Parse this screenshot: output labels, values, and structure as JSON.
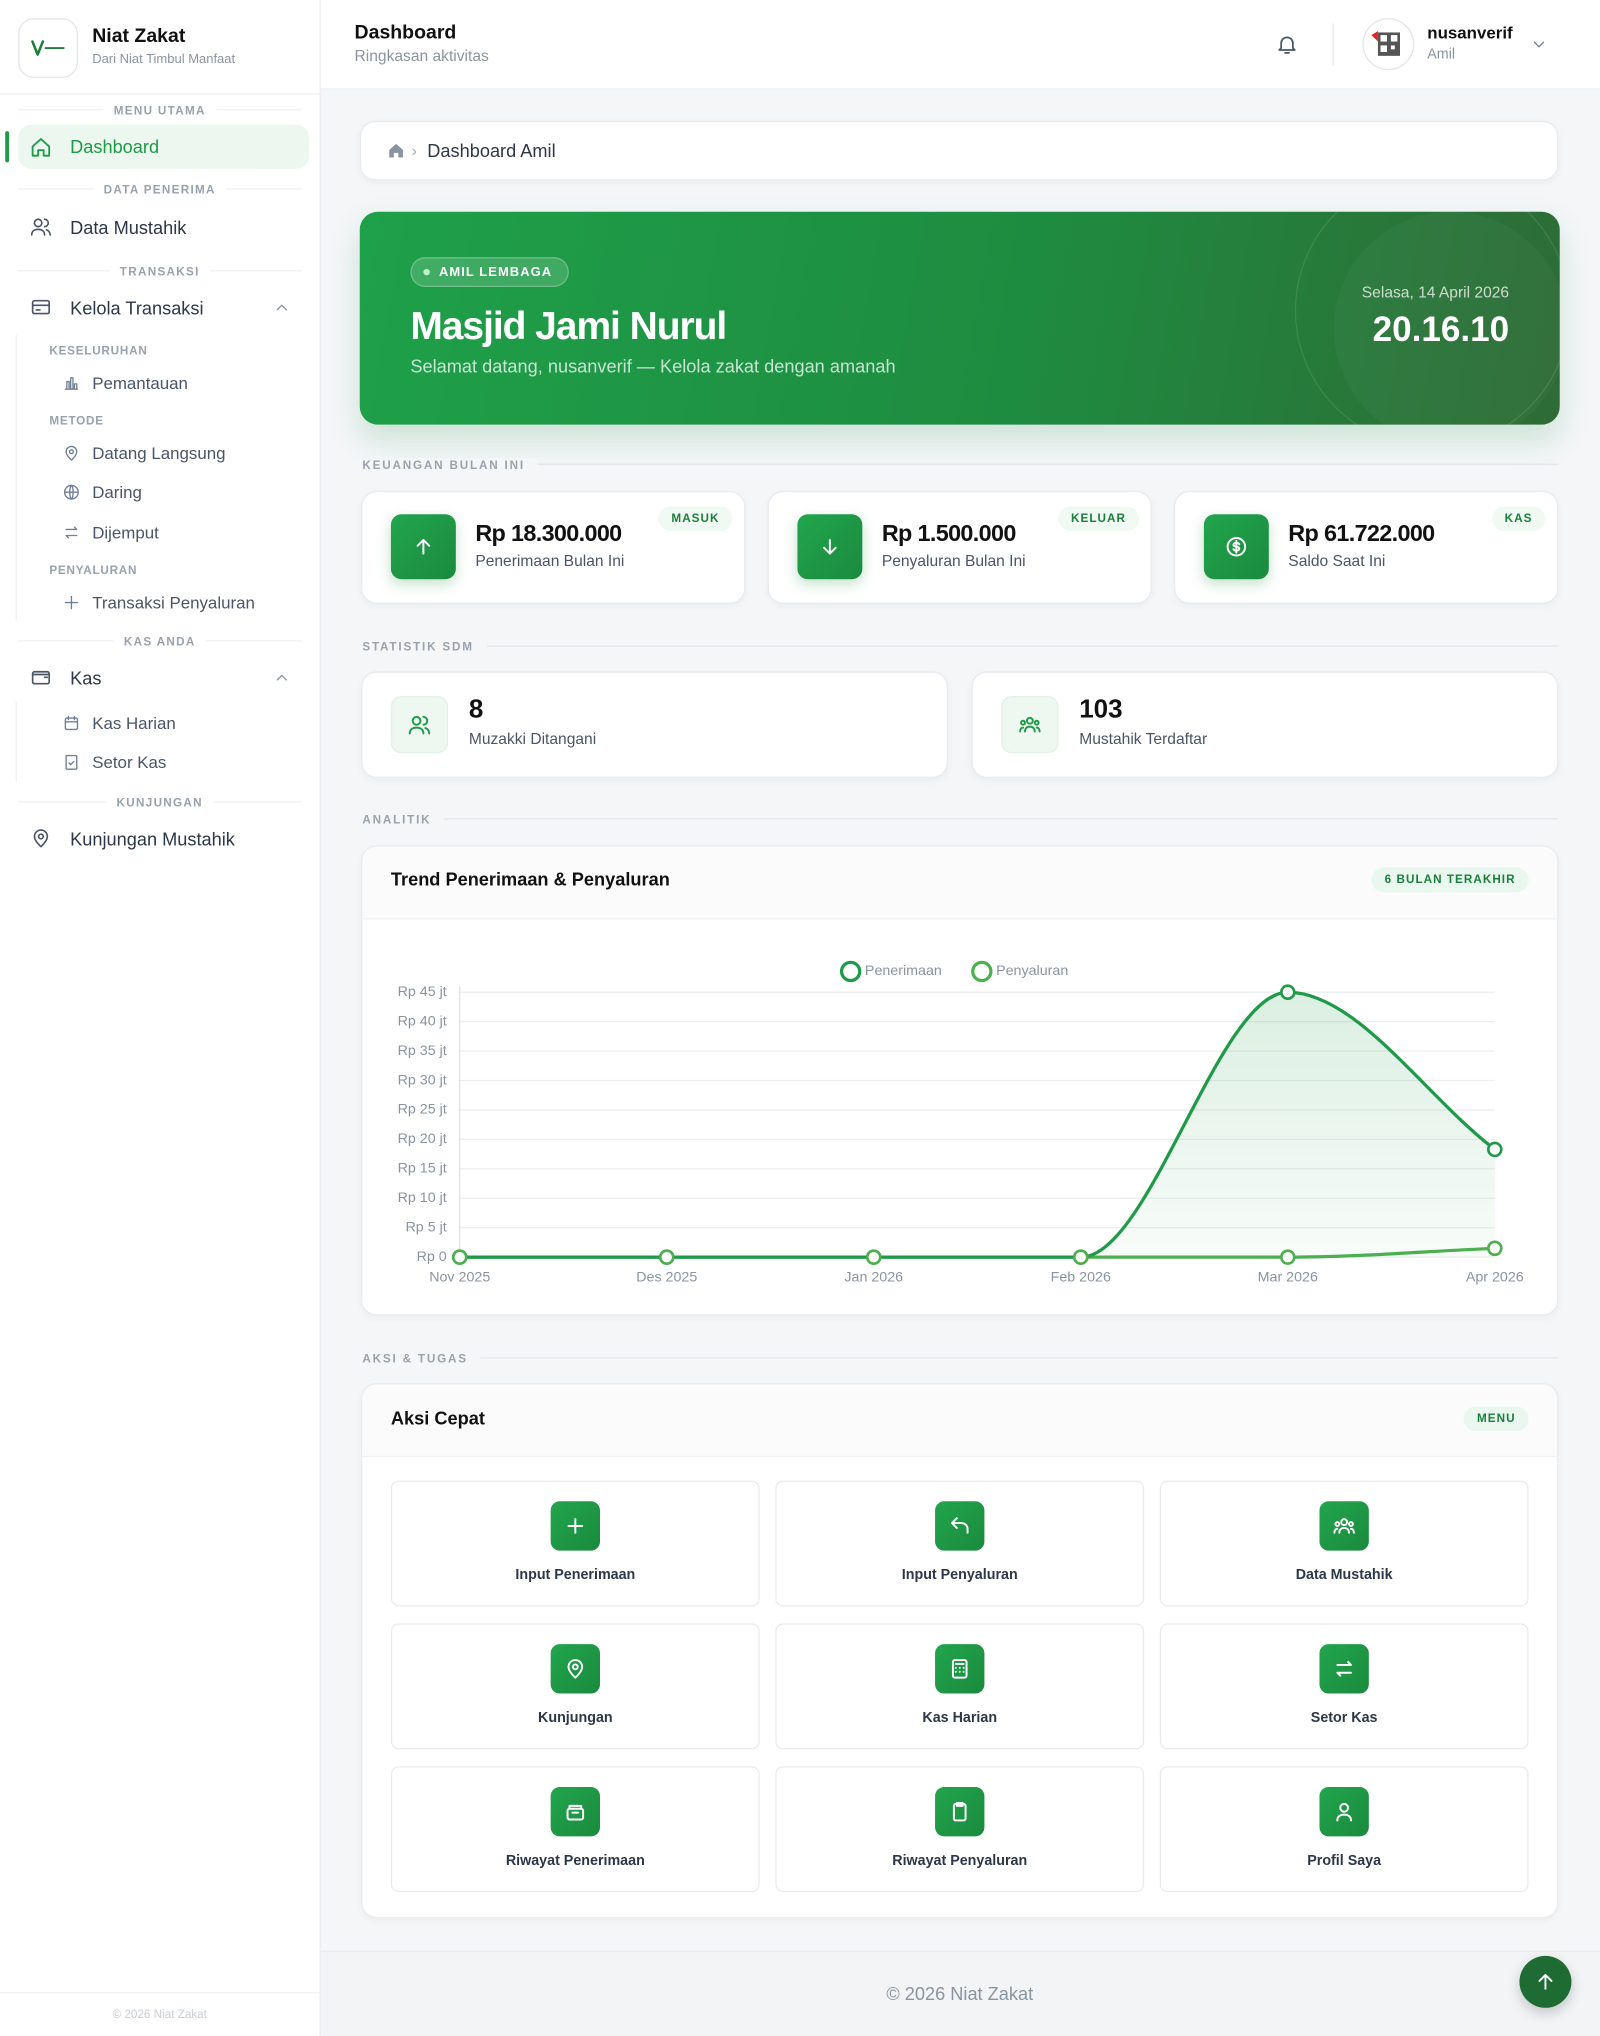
{
  "sidebar": {
    "brand": "Niat Zakat",
    "tagline": "Dari Niat Timbul Manfaat",
    "sections": [
      {
        "title": "MENU UTAMA",
        "items": [
          {
            "label": "Dashboard"
          }
        ]
      },
      {
        "title": "DATA PENERIMA",
        "items": [
          {
            "label": "Data Mustahik"
          }
        ]
      },
      {
        "title": "TRANSAKSI",
        "items": [
          {
            "label": "Kelola Transaksi",
            "groups": [
              {
                "title": "KESELURUHAN",
                "items": [
                  "Pemantauan"
                ]
              },
              {
                "title": "METODE",
                "items": [
                  "Datang Langsung",
                  "Daring",
                  "Dijemput"
                ]
              },
              {
                "title": "PENYALURAN",
                "items": [
                  "Transaksi Penyaluran"
                ]
              }
            ]
          }
        ]
      },
      {
        "title": "KAS ANDA",
        "items": [
          {
            "label": "Kas",
            "groups": [
              {
                "items": [
                  "Kas Harian",
                  "Setor Kas"
                ]
              }
            ]
          }
        ]
      },
      {
        "title": "KUNJUNGAN",
        "items": [
          {
            "label": "Kunjungan Mustahik"
          }
        ]
      }
    ],
    "footer": "© 2026 Niat Zakat"
  },
  "header": {
    "title": "Dashboard",
    "subtitle": "Ringkasan aktivitas",
    "user": "nusanverif",
    "role": "Amil"
  },
  "breadcrumb": "Dashboard Amil",
  "hero": {
    "badge": "AMIL LEMBAGA",
    "title": "Masjid Jami Nurul",
    "subtitle": "Selamat datang, nusanverif — Kelola zakat dengan amanah",
    "date": "Selasa, 14 April 2026",
    "time": "20.16.10"
  },
  "finance": {
    "title": "KEUANGAN BULAN INI",
    "cards": [
      {
        "amount": "Rp 18.300.000",
        "label": "Penerimaan Bulan Ini",
        "badge": "MASUK"
      },
      {
        "amount": "Rp 1.500.000",
        "label": "Penyaluran Bulan Ini",
        "badge": "KELUAR"
      },
      {
        "amount": "Rp 61.722.000",
        "label": "Saldo Saat Ini",
        "badge": "KAS"
      }
    ]
  },
  "stats": {
    "title": "STATISTIK SDM",
    "cards": [
      {
        "value": "8",
        "label": "Muzakki Ditangani"
      },
      {
        "value": "103",
        "label": "Mustahik Terdaftar"
      }
    ]
  },
  "analytics": {
    "title": "ANALITIK"
  },
  "chart_data": {
    "type": "line",
    "title": "Trend Penerimaan & Penyaluran",
    "subtitle": "6 BULAN TERAKHIR",
    "categories": [
      "Nov 2025",
      "Des 2025",
      "Jan 2026",
      "Feb 2026",
      "Mar 2026",
      "Apr 2026"
    ],
    "series": [
      {
        "name": "Penerimaan",
        "color": "#1e9a48",
        "values": [
          0,
          0,
          0,
          0,
          45,
          18.3
        ]
      },
      {
        "name": "Penyaluran",
        "color": "#4caf50",
        "values": [
          0,
          0,
          0,
          0,
          0,
          1.5
        ]
      }
    ],
    "ylim": [
      0,
      45
    ],
    "yticks": [
      {
        "value": 0,
        "label": "Rp 0"
      },
      {
        "value": 5,
        "label": "Rp 5 jt"
      },
      {
        "value": 10,
        "label": "Rp 10 jt"
      },
      {
        "value": 15,
        "label": "Rp 15 jt"
      },
      {
        "value": 20,
        "label": "Rp 20 jt"
      },
      {
        "value": 25,
        "label": "Rp 25 jt"
      },
      {
        "value": 30,
        "label": "Rp 30 jt"
      },
      {
        "value": 35,
        "label": "Rp 35 jt"
      },
      {
        "value": 40,
        "label": "Rp 40 jt"
      },
      {
        "value": 45,
        "label": "Rp 45 jt"
      }
    ],
    "grid": true,
    "legend": "top"
  },
  "actions": {
    "section": "AKSI & TUGAS",
    "title": "Aksi Cepat",
    "badge": "MENU",
    "items": [
      "Input Penerimaan",
      "Input Penyaluran",
      "Data Mustahik",
      "Kunjungan",
      "Kas Harian",
      "Setor Kas",
      "Riwayat Penerimaan",
      "Riwayat Penyaluran",
      "Profil Saya"
    ]
  },
  "footer": "© 2026 Niat Zakat"
}
